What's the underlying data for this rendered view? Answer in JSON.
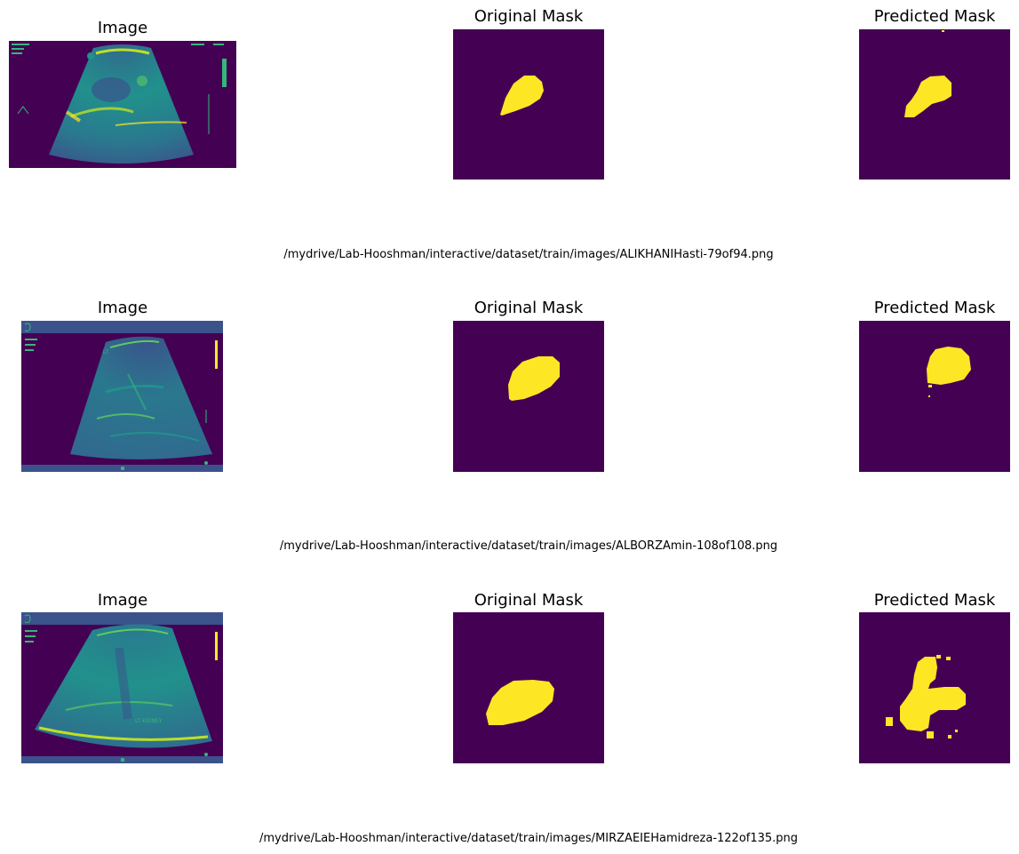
{
  "figure": {
    "rows": [
      {
        "titles": {
          "image": "Image",
          "original": "Original Mask",
          "predicted": "Predicted Mask"
        },
        "caption": "/mydrive/Lab-Hooshman/interactive/dataset/train/images/ALIKHANIHasti-79of94.png"
      },
      {
        "titles": {
          "image": "Image",
          "original": "Original Mask",
          "predicted": "Predicted Mask"
        },
        "caption": "/mydrive/Lab-Hooshman/interactive/dataset/train/images/ALBORZAmin-108of108.png",
        "image_label": "LT"
      },
      {
        "titles": {
          "image": "Image",
          "original": "Original Mask",
          "predicted": "Predicted Mask"
        },
        "caption": "/mydrive/Lab-Hooshman/interactive/dataset/train/images/MIRZAEIEHamidreza-122of135.png",
        "image_label": "LT KIDNEY"
      }
    ]
  },
  "colors": {
    "background": "#440154",
    "mask": "#fde725",
    "scan": "#35b779",
    "scan_bright": "#bddf26"
  }
}
